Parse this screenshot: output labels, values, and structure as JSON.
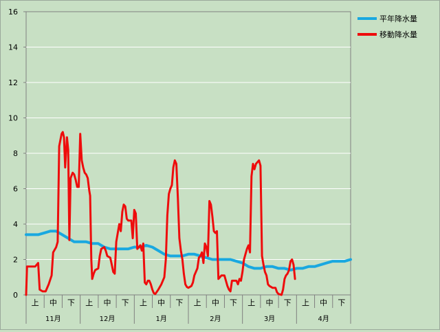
{
  "chart_data": {
    "type": "line",
    "title": "",
    "xlabel": "",
    "ylabel": "",
    "ylim": [
      0,
      16
    ],
    "yticks": [
      0,
      2,
      4,
      6,
      8,
      10,
      12,
      14,
      16
    ],
    "grid": "horizontal",
    "legend": "top-right",
    "period_labels": [
      "上",
      "中",
      "下"
    ],
    "months": [
      "11月",
      "12月",
      "1月",
      "2月",
      "3月",
      "4月"
    ],
    "series": [
      {
        "name": "平年降水量",
        "color": "#19a8e0",
        "points": [
          [
            0,
            3.4
          ],
          [
            2,
            3.4
          ],
          [
            4,
            3.4
          ],
          [
            6,
            3.5
          ],
          [
            8,
            3.6
          ],
          [
            10,
            3.6
          ],
          [
            12,
            3.4
          ],
          [
            14,
            3.2
          ],
          [
            16,
            3.0
          ],
          [
            18,
            3.0
          ],
          [
            20,
            3.0
          ],
          [
            22,
            2.9
          ],
          [
            24,
            2.9
          ],
          [
            26,
            2.7
          ],
          [
            28,
            2.6
          ],
          [
            30,
            2.6
          ],
          [
            32,
            2.6
          ],
          [
            34,
            2.6
          ],
          [
            36,
            2.7
          ],
          [
            38,
            2.7
          ],
          [
            40,
            2.8
          ],
          [
            42,
            2.7
          ],
          [
            44,
            2.5
          ],
          [
            46,
            2.3
          ],
          [
            48,
            2.2
          ],
          [
            50,
            2.2
          ],
          [
            52,
            2.2
          ],
          [
            54,
            2.3
          ],
          [
            56,
            2.3
          ],
          [
            58,
            2.2
          ],
          [
            60,
            2.1
          ],
          [
            62,
            2.0
          ],
          [
            64,
            2.0
          ],
          [
            66,
            2.0
          ],
          [
            68,
            2.0
          ],
          [
            70,
            1.9
          ],
          [
            72,
            1.8
          ],
          [
            74,
            1.6
          ],
          [
            76,
            1.5
          ],
          [
            78,
            1.5
          ],
          [
            80,
            1.6
          ],
          [
            82,
            1.6
          ],
          [
            84,
            1.5
          ],
          [
            86,
            1.5
          ],
          [
            88,
            1.4
          ],
          [
            90,
            1.5
          ],
          [
            92,
            1.5
          ],
          [
            94,
            1.6
          ],
          [
            96,
            1.6
          ],
          [
            98,
            1.7
          ],
          [
            100,
            1.8
          ],
          [
            102,
            1.9
          ],
          [
            104,
            1.9
          ],
          [
            106,
            1.9
          ],
          [
            108,
            2.0
          ]
        ]
      },
      {
        "name": "移動降水量",
        "color": "#ee0c0c",
        "points": [
          [
            0,
            0
          ],
          [
            0.3,
            1.6
          ],
          [
            2,
            1.6
          ],
          [
            3,
            1.6
          ],
          [
            4,
            1.8
          ],
          [
            4.5,
            0.3
          ],
          [
            5.5,
            0.2
          ],
          [
            6.5,
            0.2
          ],
          [
            7.5,
            0.6
          ],
          [
            8.5,
            1.1
          ],
          [
            9,
            2.4
          ],
          [
            10,
            2.7
          ],
          [
            10.5,
            3.0
          ],
          [
            11,
            8.4
          ],
          [
            11.8,
            9.1
          ],
          [
            12.2,
            9.2
          ],
          [
            12.6,
            8.9
          ],
          [
            13,
            7.2
          ],
          [
            13.6,
            8.9
          ],
          [
            14,
            8.2
          ],
          [
            14.4,
            3.1
          ],
          [
            14.8,
            6.6
          ],
          [
            15.5,
            6.9
          ],
          [
            16,
            6.8
          ],
          [
            16.5,
            6.5
          ],
          [
            17,
            6.1
          ],
          [
            17.5,
            6.1
          ],
          [
            18,
            9.1
          ],
          [
            18.5,
            7.6
          ],
          [
            19,
            7.2
          ],
          [
            19.5,
            6.9
          ],
          [
            20,
            6.8
          ],
          [
            20.5,
            6.6
          ],
          [
            21,
            5.9
          ],
          [
            21.3,
            5.6
          ],
          [
            21.7,
            2.0
          ],
          [
            22,
            0.9
          ],
          [
            22.5,
            1.2
          ],
          [
            23,
            1.4
          ],
          [
            24,
            1.5
          ],
          [
            24.5,
            2.2
          ],
          [
            25,
            2.6
          ],
          [
            26,
            2.7
          ],
          [
            26.5,
            2.5
          ],
          [
            27,
            2.2
          ],
          [
            28,
            2.1
          ],
          [
            28.5,
            1.7
          ],
          [
            29,
            1.3
          ],
          [
            29.5,
            1.2
          ],
          [
            30,
            3.0
          ],
          [
            30.5,
            3.5
          ],
          [
            31,
            4.0
          ],
          [
            31.5,
            3.6
          ],
          [
            32,
            4.7
          ],
          [
            32.5,
            5.1
          ],
          [
            33,
            5.0
          ],
          [
            33.5,
            4.3
          ],
          [
            34,
            4.2
          ],
          [
            35,
            4.2
          ],
          [
            35.5,
            3.2
          ],
          [
            36,
            4.8
          ],
          [
            36.5,
            4.6
          ],
          [
            37,
            2.6
          ],
          [
            37.5,
            2.7
          ],
          [
            38,
            2.8
          ],
          [
            38.5,
            2.5
          ],
          [
            39,
            2.9
          ],
          [
            39.5,
            0.7
          ],
          [
            40,
            0.6
          ],
          [
            40.5,
            0.8
          ],
          [
            41,
            0.8
          ],
          [
            41.5,
            0.6
          ],
          [
            42,
            0.3
          ],
          [
            42.5,
            0.1
          ],
          [
            43,
            0.05
          ],
          [
            44,
            0.3
          ],
          [
            45,
            0.6
          ],
          [
            46,
            1.0
          ],
          [
            46.5,
            2.0
          ],
          [
            47,
            4.5
          ],
          [
            47.5,
            5.7
          ],
          [
            48,
            6.0
          ],
          [
            48.5,
            6.2
          ],
          [
            49,
            7.2
          ],
          [
            49.5,
            7.6
          ],
          [
            50,
            7.4
          ],
          [
            50.5,
            5.5
          ],
          [
            51,
            3.2
          ],
          [
            51.5,
            2.5
          ],
          [
            52,
            2.0
          ],
          [
            52.5,
            1.2
          ],
          [
            53,
            0.6
          ],
          [
            53.5,
            0.45
          ],
          [
            54,
            0.4
          ],
          [
            55,
            0.5
          ],
          [
            55.5,
            0.7
          ],
          [
            56,
            1.1
          ],
          [
            57,
            1.5
          ],
          [
            57.5,
            2.1
          ],
          [
            58,
            2.2
          ],
          [
            58.5,
            2.4
          ],
          [
            59,
            1.8
          ],
          [
            59.5,
            2.9
          ],
          [
            60,
            2.7
          ],
          [
            60.5,
            2.2
          ],
          [
            61,
            5.3
          ],
          [
            61.5,
            5.1
          ],
          [
            62,
            4.4
          ],
          [
            62.5,
            3.6
          ],
          [
            63,
            3.5
          ],
          [
            63.5,
            3.6
          ],
          [
            64,
            0.9
          ],
          [
            64.5,
            1.0
          ],
          [
            65,
            1.1
          ],
          [
            66,
            1.1
          ],
          [
            67,
            0.5
          ],
          [
            67.5,
            0.3
          ],
          [
            68,
            0.2
          ],
          [
            68.5,
            0.8
          ],
          [
            69,
            0.8
          ],
          [
            70,
            0.8
          ],
          [
            70.5,
            0.6
          ],
          [
            71,
            0.9
          ],
          [
            71.5,
            0.8
          ],
          [
            72,
            1.3
          ],
          [
            72.5,
            2.0
          ],
          [
            73,
            2.3
          ],
          [
            73.5,
            2.6
          ],
          [
            74,
            2.8
          ],
          [
            74.5,
            2.4
          ],
          [
            75,
            6.7
          ],
          [
            75.5,
            7.4
          ],
          [
            76,
            7.1
          ],
          [
            76.5,
            7.4
          ],
          [
            77,
            7.5
          ],
          [
            77.5,
            7.6
          ],
          [
            78,
            7.3
          ],
          [
            78.5,
            2.2
          ],
          [
            79,
            1.7
          ],
          [
            79.5,
            1.3
          ],
          [
            80,
            1.1
          ],
          [
            80.5,
            0.6
          ],
          [
            81,
            0.5
          ],
          [
            82,
            0.4
          ],
          [
            83,
            0.4
          ],
          [
            83.5,
            0.15
          ],
          [
            84,
            0.05
          ],
          [
            85,
            0.0
          ],
          [
            85.5,
            0.3
          ],
          [
            86,
            0.9
          ],
          [
            86.5,
            1.1
          ],
          [
            87,
            1.2
          ],
          [
            87.5,
            1.4
          ],
          [
            88,
            1.9
          ],
          [
            88.5,
            2.0
          ],
          [
            89,
            1.7
          ],
          [
            89.5,
            0.9
          ]
        ]
      }
    ]
  }
}
